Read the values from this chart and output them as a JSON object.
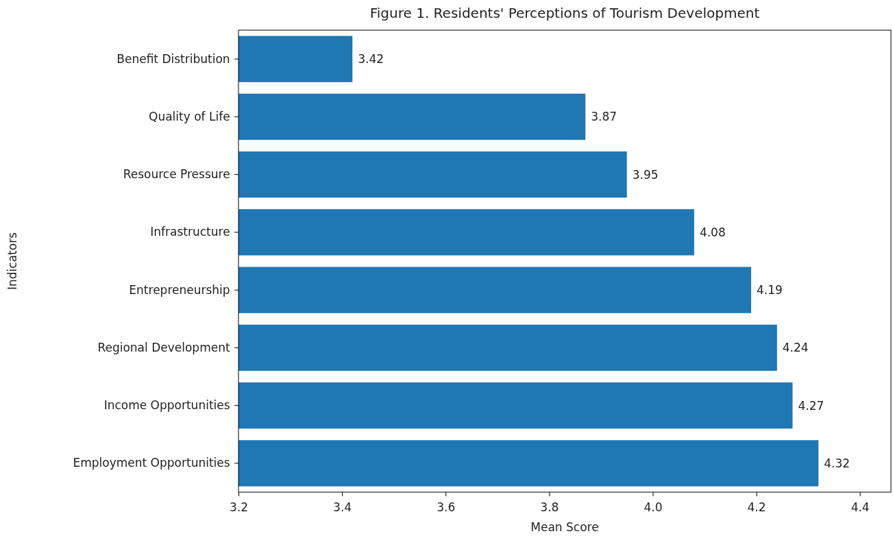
{
  "chart_data": {
    "type": "bar",
    "orientation": "horizontal",
    "title": "Figure 1. Residents' Perceptions of Tourism Development",
    "xlabel": "Mean Score",
    "ylabel": "Indicators",
    "categories": [
      "Benefit Distribution",
      "Quality of Life",
      "Resource Pressure",
      "Infrastructure",
      "Entrepreneurship",
      "Regional Development",
      "Income Opportunities",
      "Employment Opportunities"
    ],
    "values": [
      3.42,
      3.87,
      3.95,
      4.08,
      4.19,
      4.24,
      4.27,
      4.32
    ],
    "color": "#1f77b4",
    "data_labels": true,
    "grid": false,
    "xlim": [
      3.2,
      4.46
    ],
    "xticks": [
      3.2,
      3.4,
      3.6,
      3.8,
      {
        "value": 4.0,
        "label": "4.0"
      },
      4.2,
      4.4
    ]
  }
}
